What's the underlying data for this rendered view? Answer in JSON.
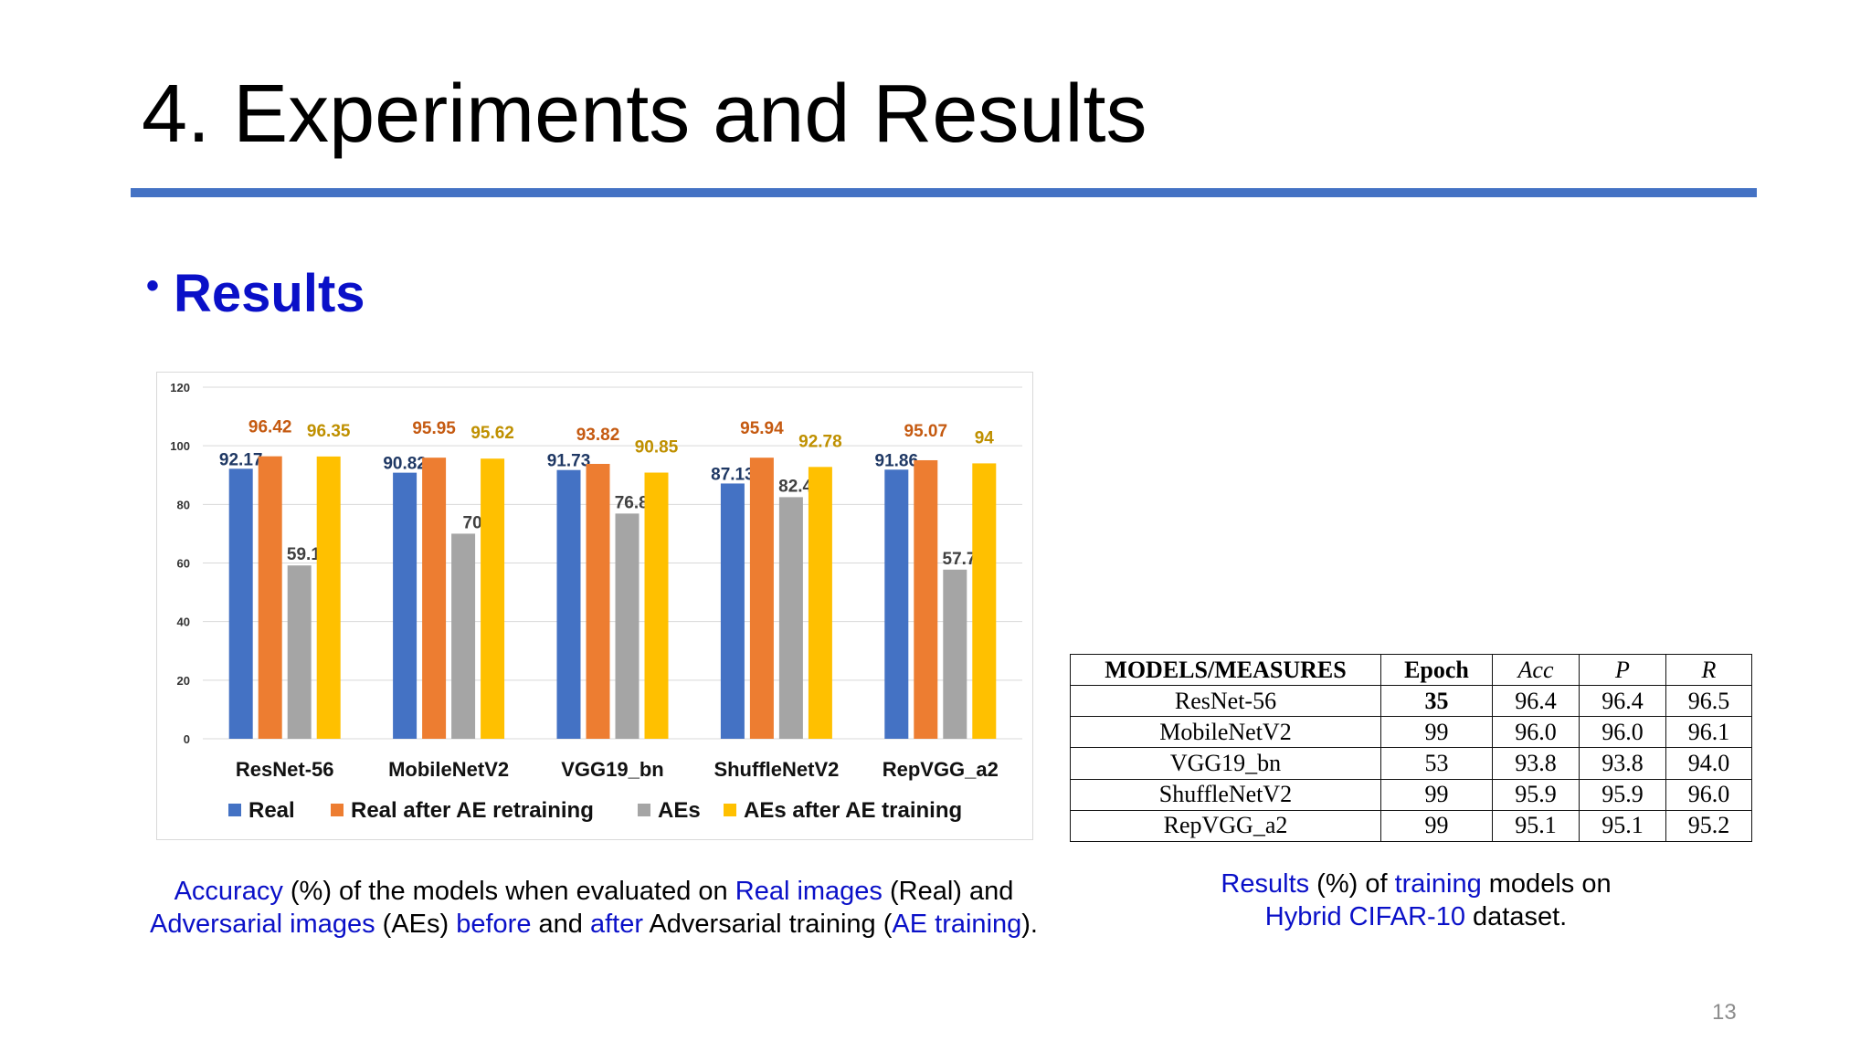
{
  "slide": {
    "title": "4. Experiments and Results",
    "bullet_marker": "•",
    "bullet": "Results",
    "page_number": "13"
  },
  "chart_data": {
    "type": "bar",
    "categories": [
      "ResNet-56",
      "MobileNetV2",
      "VGG19_bn",
      "ShuffleNetV2",
      "RepVGG_a2"
    ],
    "series": [
      {
        "name": "Real",
        "values": [
          92.17,
          90.82,
          91.73,
          87.13,
          91.86
        ],
        "color": "#4472C4",
        "label_color": "#1F3864"
      },
      {
        "name": "Real after AE retraining",
        "values": [
          96.42,
          95.95,
          93.82,
          95.94,
          95.07
        ],
        "color": "#ED7D31",
        "label_color": "#C55A11"
      },
      {
        "name": "AEs",
        "values": [
          59.16,
          70,
          76.87,
          82.47,
          57.73
        ],
        "color": "#A5A5A5",
        "label_color": "#404040"
      },
      {
        "name": "AEs after AE training",
        "values": [
          96.35,
          95.62,
          90.85,
          92.78,
          94
        ],
        "color": "#FFC000",
        "label_color": "#BF9000"
      }
    ],
    "value_labels": [
      [
        "92.17",
        "90.82",
        "91.73",
        "87.13",
        "91.86"
      ],
      [
        "96.42",
        "95.95",
        "93.82",
        "95.94",
        "95.07"
      ],
      [
        "59.16",
        "70",
        "76.87",
        "82.47",
        "57.73"
      ],
      [
        "96.35",
        "95.62",
        "90.85",
        "92.78",
        "94"
      ]
    ],
    "yticks": [
      "0",
      "20",
      "40",
      "60",
      "80",
      "100",
      "120"
    ],
    "ylim": [
      0,
      120
    ],
    "grid": true,
    "legend_position": "bottom"
  },
  "table": {
    "headers": [
      "MODELS/MEASURES",
      "Epoch",
      "Acc",
      "P",
      "R"
    ],
    "rows": [
      [
        "ResNet-56",
        "35",
        "96.4",
        "96.4",
        "96.5"
      ],
      [
        "MobileNetV2",
        "99",
        "96.0",
        "96.0",
        "96.1"
      ],
      [
        "VGG19_bn",
        "53",
        "93.8",
        "93.8",
        "94.0"
      ],
      [
        "ShuffleNetV2",
        "99",
        "95.9",
        "95.9",
        "96.0"
      ],
      [
        "RepVGG_a2",
        "99",
        "95.1",
        "95.1",
        "95.2"
      ]
    ]
  },
  "chart_caption": {
    "line1": [
      {
        "text": "Accuracy",
        "hl": true
      },
      {
        "text": " (%) of the models when evaluated on ",
        "hl": false
      },
      {
        "text": "Real images",
        "hl": true
      },
      {
        "text": " (Real) and",
        "hl": false
      }
    ],
    "line2": [
      {
        "text": "Adversarial images",
        "hl": true
      },
      {
        "text": " (AEs) ",
        "hl": false
      },
      {
        "text": "before",
        "hl": true
      },
      {
        "text": " and ",
        "hl": false
      },
      {
        "text": "after",
        "hl": true
      },
      {
        "text": " Adversarial training (",
        "hl": false
      },
      {
        "text": "AE training",
        "hl": true
      },
      {
        "text": ").",
        "hl": false
      }
    ]
  },
  "table_caption": {
    "line1": [
      {
        "text": "Results",
        "hl": true
      },
      {
        "text": " (%) of ",
        "hl": false
      },
      {
        "text": "training",
        "hl": true
      },
      {
        "text": " models on",
        "hl": false
      }
    ],
    "line2": [
      {
        "text": "Hybrid CIFAR-10",
        "hl": true
      },
      {
        "text": " dataset.",
        "hl": false
      }
    ]
  }
}
